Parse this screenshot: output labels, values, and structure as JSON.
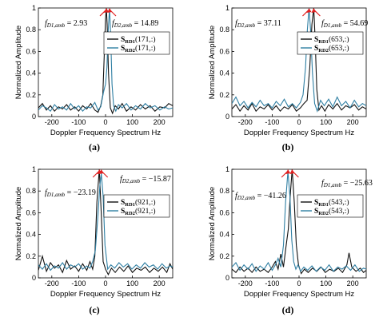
{
  "colors": {
    "series1": "#111111",
    "series2": "#2f7fa3",
    "arrow": "#e02020"
  },
  "chart_data": [
    {
      "type": "line",
      "caption": "(a)",
      "xlabel": "Doppler Frequency Spectrum  Hz",
      "ylabel": "Normalized Amplitude",
      "xlim": [
        -250,
        250
      ],
      "ylim": [
        0,
        1
      ],
      "xticks": [
        -200,
        -100,
        0,
        100,
        200
      ],
      "yticks": [
        0,
        0.2,
        0.4,
        0.6,
        0.8,
        1
      ],
      "xtick_labels": [
        "-200",
        "-100",
        "0",
        "100",
        "200"
      ],
      "ytick_labels": [
        "0",
        "0.2",
        "0.4",
        "0.6",
        "0.8",
        "1"
      ],
      "legend_position": "right",
      "legend": [
        "S_RD1(171,:)",
        "S_RD2(171,:)"
      ],
      "annotations": [
        {
          "symbol": "f",
          "sub": "D1,amb",
          "value": "= 2.93",
          "x": 2.93
        },
        {
          "symbol": "f",
          "sub": "D2,amb",
          "value": "= 14.89",
          "x": 14.89
        }
      ],
      "series": [
        {
          "name": "S_RD1(171,:)",
          "peak": 2.93,
          "x": [
            -250,
            -235,
            -220,
            -205,
            -190,
            -175,
            -160,
            -145,
            -130,
            -115,
            -100,
            -85,
            -70,
            -55,
            -40,
            -28,
            -18,
            -10,
            -5,
            0,
            2.93,
            6,
            11,
            18,
            26,
            36,
            48,
            62,
            78,
            95,
            112,
            130,
            148,
            166,
            184,
            202,
            220,
            235,
            250
          ],
          "y": [
            0.08,
            0.12,
            0.06,
            0.1,
            0.05,
            0.09,
            0.07,
            0.11,
            0.06,
            0.09,
            0.05,
            0.1,
            0.07,
            0.12,
            0.06,
            0.04,
            0.1,
            0.2,
            0.55,
            0.9,
            1.0,
            0.85,
            0.4,
            0.08,
            0.03,
            0.1,
            0.07,
            0.12,
            0.05,
            0.09,
            0.06,
            0.11,
            0.07,
            0.1,
            0.05,
            0.09,
            0.08,
            0.12,
            0.1
          ]
        },
        {
          "name": "S_RD2(171,:)",
          "peak": 14.89,
          "x": [
            -250,
            -235,
            -220,
            -205,
            -190,
            -175,
            -160,
            -145,
            -130,
            -115,
            -100,
            -85,
            -70,
            -55,
            -40,
            -28,
            -18,
            -8,
            0,
            5,
            10,
            14.89,
            19,
            24,
            30,
            38,
            48,
            62,
            78,
            95,
            112,
            130,
            148,
            166,
            184,
            202,
            220,
            235,
            250
          ],
          "y": [
            0.06,
            0.1,
            0.08,
            0.05,
            0.11,
            0.07,
            0.09,
            0.06,
            0.12,
            0.07,
            0.1,
            0.05,
            0.09,
            0.08,
            0.13,
            0.06,
            0.09,
            0.22,
            0.3,
            0.45,
            0.8,
            1.0,
            0.75,
            0.3,
            0.1,
            0.05,
            0.11,
            0.08,
            0.12,
            0.06,
            0.1,
            0.07,
            0.12,
            0.08,
            0.1,
            0.06,
            0.09,
            0.07,
            0.08
          ]
        }
      ]
    },
    {
      "type": "line",
      "caption": "(b)",
      "xlabel": "Doppler Frequency Spectrum  Hz",
      "ylabel": "Normalized Amplitude",
      "xlim": [
        -250,
        250
      ],
      "ylim": [
        0,
        1
      ],
      "xticks": [
        -200,
        -100,
        0,
        100,
        200
      ],
      "yticks": [
        0,
        0.2,
        0.4,
        0.6,
        0.8,
        1
      ],
      "xtick_labels": [
        "-200",
        "-100",
        "0",
        "100",
        "200"
      ],
      "ytick_labels": [
        "0",
        "0.2",
        "0.4",
        "0.6",
        "0.8",
        "1"
      ],
      "legend_position": "right",
      "legend": [
        "S_RD1(653,:)",
        "S_RD2(653,:)"
      ],
      "annotations": [
        {
          "symbol": "f",
          "sub": "D2,amb",
          "value": "= 37.11",
          "x": 37.11
        },
        {
          "symbol": "f",
          "sub": "D1,amb",
          "value": "= 54.69",
          "x": 54.69
        }
      ],
      "series": [
        {
          "name": "S_RD1(653,:)",
          "peak": 54.69,
          "x": [
            -250,
            -235,
            -220,
            -205,
            -190,
            -175,
            -160,
            -145,
            -130,
            -115,
            -100,
            -85,
            -70,
            -55,
            -40,
            -25,
            -10,
            5,
            18,
            30,
            40,
            48,
            54.69,
            60,
            66,
            74,
            84,
            96,
            110,
            126,
            142,
            158,
            174,
            190,
            206,
            222,
            236,
            250
          ],
          "y": [
            0.07,
            0.11,
            0.05,
            0.1,
            0.06,
            0.12,
            0.05,
            0.09,
            0.07,
            0.11,
            0.06,
            0.1,
            0.05,
            0.09,
            0.07,
            0.11,
            0.05,
            0.08,
            0.12,
            0.15,
            0.45,
            0.85,
            1.0,
            0.7,
            0.25,
            0.06,
            0.1,
            0.05,
            0.11,
            0.07,
            0.12,
            0.06,
            0.1,
            0.08,
            0.11,
            0.06,
            0.09,
            0.07
          ]
        },
        {
          "name": "S_RD2(653,:)",
          "peak": 37.11,
          "x": [
            -250,
            -235,
            -220,
            -205,
            -190,
            -175,
            -160,
            -145,
            -130,
            -115,
            -100,
            -85,
            -70,
            -55,
            -40,
            -25,
            -10,
            5,
            15,
            24,
            31,
            37.11,
            43,
            50,
            58,
            68,
            80,
            94,
            110,
            126,
            142,
            158,
            174,
            190,
            206,
            222,
            236,
            250
          ],
          "y": [
            0.12,
            0.18,
            0.1,
            0.14,
            0.08,
            0.13,
            0.09,
            0.15,
            0.1,
            0.12,
            0.08,
            0.14,
            0.1,
            0.16,
            0.09,
            0.12,
            0.08,
            0.13,
            0.2,
            0.45,
            0.8,
            1.0,
            0.8,
            0.4,
            0.12,
            0.05,
            0.15,
            0.1,
            0.16,
            0.09,
            0.18,
            0.1,
            0.14,
            0.08,
            0.15,
            0.09,
            0.12,
            0.1
          ]
        }
      ]
    },
    {
      "type": "line",
      "caption": "(c)",
      "xlabel": "Doppler Frequency Spectrum  Hz",
      "ylabel": "Normalized Amplitude",
      "xlim": [
        -250,
        250
      ],
      "ylim": [
        0,
        1
      ],
      "xticks": [
        -200,
        -100,
        0,
        100,
        200
      ],
      "yticks": [
        0,
        0.2,
        0.4,
        0.6,
        0.8,
        1
      ],
      "xtick_labels": [
        "-200",
        "-100",
        "0",
        "100",
        "200"
      ],
      "ytick_labels": [
        "0",
        "0.2",
        "0.4",
        "0.6",
        "0.8",
        "1"
      ],
      "legend_position": "right",
      "legend": [
        "S_RD1(921,:)",
        "S_RD2(921,:)"
      ],
      "annotations": [
        {
          "symbol": "f",
          "sub": "D2,amb",
          "value": "= −15.87",
          "x": -15.87
        },
        {
          "symbol": "f",
          "sub": "D1,amb",
          "value": "= −23.19",
          "x": -23.19
        }
      ],
      "series": [
        {
          "name": "S_RD1(921,:)",
          "peak": -23.19,
          "x": [
            -250,
            -235,
            -220,
            -205,
            -190,
            -175,
            -160,
            -145,
            -130,
            -115,
            -100,
            -85,
            -70,
            -58,
            -48,
            -40,
            -32,
            -23.19,
            -16,
            -9,
            0,
            10,
            22,
            36,
            52,
            68,
            84,
            100,
            116,
            132,
            148,
            164,
            180,
            196,
            212,
            228,
            240,
            250
          ],
          "y": [
            0.07,
            0.2,
            0.06,
            0.14,
            0.09,
            0.12,
            0.05,
            0.16,
            0.08,
            0.11,
            0.06,
            0.13,
            0.07,
            0.15,
            0.08,
            0.2,
            0.7,
            1.0,
            0.6,
            0.15,
            0.08,
            0.03,
            0.09,
            0.05,
            0.1,
            0.06,
            0.11,
            0.05,
            0.09,
            0.07,
            0.1,
            0.05,
            0.09,
            0.06,
            0.1,
            0.05,
            0.13,
            0.08
          ]
        },
        {
          "name": "S_RD2(921,:)",
          "peak": -15.87,
          "x": [
            -250,
            -235,
            -220,
            -205,
            -190,
            -175,
            -160,
            -145,
            -130,
            -115,
            -100,
            -85,
            -70,
            -58,
            -48,
            -38,
            -29,
            -21,
            -15.87,
            -9,
            -2,
            8,
            20,
            34,
            50,
            66,
            82,
            98,
            114,
            130,
            146,
            162,
            178,
            194,
            210,
            226,
            240,
            250
          ],
          "y": [
            0.12,
            0.08,
            0.13,
            0.07,
            0.11,
            0.09,
            0.14,
            0.08,
            0.12,
            0.1,
            0.13,
            0.08,
            0.11,
            0.09,
            0.15,
            0.25,
            0.55,
            0.85,
            0.96,
            0.75,
            0.3,
            0.08,
            0.12,
            0.09,
            0.14,
            0.1,
            0.13,
            0.08,
            0.12,
            0.09,
            0.14,
            0.1,
            0.12,
            0.08,
            0.13,
            0.09,
            0.11,
            0.1
          ]
        }
      ]
    },
    {
      "type": "line",
      "caption": "(d)",
      "xlabel": "Doppler Frequency Spectrum  Hz",
      "ylabel": "Normalized Amplitude",
      "xlim": [
        -250,
        250
      ],
      "ylim": [
        0,
        1
      ],
      "xticks": [
        -200,
        -100,
        0,
        100,
        200
      ],
      "yticks": [
        0,
        0.2,
        0.4,
        0.6,
        0.8,
        1
      ],
      "xtick_labels": [
        "-200",
        "-100",
        "0",
        "100",
        "200"
      ],
      "ytick_labels": [
        "0",
        "0.2",
        "0.4",
        "0.6",
        "0.8",
        "1"
      ],
      "legend_position": "right",
      "legend": [
        "S_RD1(543,:)",
        "S_RD2(543,:)"
      ],
      "annotations": [
        {
          "symbol": "f",
          "sub": "D2,amb",
          "value": "= −41.26",
          "x": -41.26
        },
        {
          "symbol": "f",
          "sub": "D1,amb",
          "value": "= −25.63",
          "x": -25.63
        }
      ],
      "series": [
        {
          "name": "S_RD1(543,:)",
          "peak": -25.63,
          "x": [
            -250,
            -235,
            -220,
            -205,
            -190,
            -175,
            -160,
            -145,
            -130,
            -115,
            -100,
            -88,
            -78,
            -68,
            -58,
            -48,
            -40,
            -33,
            -25.63,
            -18,
            -10,
            -2,
            8,
            20,
            34,
            50,
            66,
            82,
            98,
            114,
            130,
            146,
            162,
            178,
            186,
            196,
            212,
            228,
            240,
            250
          ],
          "y": [
            0.08,
            0.05,
            0.1,
            0.06,
            0.09,
            0.05,
            0.1,
            0.06,
            0.08,
            0.05,
            0.1,
            0.15,
            0.08,
            0.22,
            0.1,
            0.3,
            0.45,
            0.75,
            1.0,
            0.7,
            0.3,
            0.12,
            0.04,
            0.08,
            0.05,
            0.09,
            0.06,
            0.1,
            0.05,
            0.08,
            0.06,
            0.09,
            0.05,
            0.12,
            0.23,
            0.1,
            0.06,
            0.09,
            0.05,
            0.07
          ]
        },
        {
          "name": "S_RD2(543,:)",
          "peak": -41.26,
          "x": [
            -250,
            -235,
            -220,
            -205,
            -190,
            -175,
            -160,
            -145,
            -130,
            -115,
            -100,
            -88,
            -78,
            -68,
            -58,
            -50,
            -41.26,
            -34,
            -27,
            -20,
            -12,
            -4,
            6,
            18,
            32,
            48,
            64,
            80,
            96,
            112,
            128,
            144,
            160,
            176,
            192,
            208,
            224,
            240,
            250
          ],
          "y": [
            0.1,
            0.14,
            0.07,
            0.12,
            0.08,
            0.13,
            0.06,
            0.11,
            0.08,
            0.14,
            0.07,
            0.12,
            0.18,
            0.1,
            0.3,
            0.7,
            0.98,
            0.75,
            0.35,
            0.15,
            0.08,
            0.12,
            0.06,
            0.1,
            0.07,
            0.11,
            0.06,
            0.1,
            0.07,
            0.12,
            0.06,
            0.1,
            0.08,
            0.11,
            0.07,
            0.12,
            0.06,
            0.09,
            0.08
          ]
        }
      ]
    }
  ]
}
